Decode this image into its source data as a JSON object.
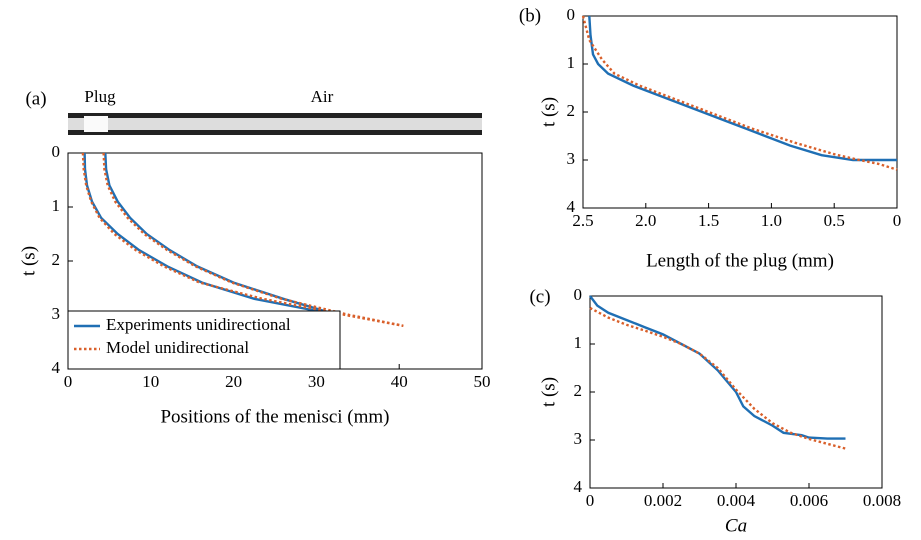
{
  "chart_data": [
    {
      "type": "line",
      "panel_label": "(a)",
      "image_labels": [
        "Plug",
        "Air"
      ],
      "xlabel": "Positions of the menisci (mm)",
      "ylabel": "t (s)",
      "xlim": [
        0,
        50
      ],
      "ylim": [
        0,
        4
      ],
      "xticks": [
        0,
        10,
        20,
        30,
        40,
        50
      ],
      "yticks": [
        0,
        1,
        2,
        3,
        4
      ],
      "y_inverted": true,
      "x_reversed": false,
      "legend": "lower left",
      "series": [
        {
          "name": "Experiments unidirectional",
          "color": "#1f6fb4",
          "style": "solid",
          "lines": [
            {
              "x": [
                2.0,
                2.05,
                2.3,
                2.9,
                4.0,
                6.0,
                8.6,
                12.0,
                16.2,
                22.5,
                32.6
              ],
              "values": [
                0,
                0.3,
                0.6,
                0.9,
                1.2,
                1.5,
                1.8,
                2.1,
                2.4,
                2.7,
                3.0
              ]
            },
            {
              "x": [
                4.5,
                4.6,
                5.0,
                6.0,
                7.5,
                9.5,
                12.3,
                15.6,
                20.0,
                26.0,
                32.6
              ],
              "values": [
                0,
                0.3,
                0.6,
                0.9,
                1.2,
                1.5,
                1.8,
                2.1,
                2.4,
                2.7,
                3.0
              ]
            }
          ]
        },
        {
          "name": "Model unidirectional",
          "color": "#d9602b",
          "style": "dotted",
          "lines": [
            {
              "x": [
                1.8,
                1.9,
                2.2,
                2.8,
                3.8,
                5.6,
                8.2,
                11.6,
                15.9,
                23.5,
                33.5,
                40.5
              ],
              "values": [
                0,
                0.3,
                0.6,
                0.9,
                1.2,
                1.5,
                1.8,
                2.1,
                2.4,
                2.7,
                3.0,
                3.2
              ]
            },
            {
              "x": [
                4.3,
                4.4,
                4.8,
                5.7,
                7.2,
                9.2,
                12.0,
                15.4,
                19.8,
                25.8,
                34.0,
                40.5
              ],
              "values": [
                0,
                0.3,
                0.6,
                0.9,
                1.2,
                1.5,
                1.8,
                2.1,
                2.4,
                2.7,
                3.0,
                3.2
              ]
            }
          ]
        }
      ]
    },
    {
      "type": "line",
      "panel_label": "(b)",
      "xlabel": "Length of the plug (mm)",
      "ylabel": "t (s)",
      "xlim": [
        0,
        2.5
      ],
      "ylim": [
        0,
        4
      ],
      "xticks": [
        2.5,
        {
          "value": 2,
          "label": "2.0"
        },
        1.5,
        {
          "value": 1,
          "label": "1.0"
        },
        0.5,
        0
      ],
      "yticks": [
        0,
        1,
        2,
        3,
        4
      ],
      "y_inverted": true,
      "x_reversed": true,
      "series": [
        {
          "color": "#1f6fb4",
          "style": "solid",
          "lines": [
            {
              "x": [
                2.45,
                2.44,
                2.42,
                2.38,
                2.3,
                2.1,
                1.85,
                1.55,
                1.2,
                0.85,
                0.6,
                0.35,
                0
              ],
              "values": [
                0,
                0.4,
                0.8,
                1.0,
                1.2,
                1.45,
                1.7,
                2.0,
                2.35,
                2.7,
                2.9,
                3.0,
                3.0
              ]
            }
          ]
        },
        {
          "color": "#d9602b",
          "style": "dotted",
          "lines": [
            {
              "x": [
                2.5,
                2.45,
                2.35,
                2.25,
                2.05,
                1.8,
                1.5,
                1.15,
                0.8,
                0.5,
                0.3,
                0.15,
                0
              ],
              "values": [
                0,
                0.5,
                0.9,
                1.2,
                1.45,
                1.7,
                2.0,
                2.35,
                2.65,
                2.88,
                3.0,
                3.08,
                3.2
              ]
            }
          ]
        }
      ]
    },
    {
      "type": "line",
      "panel_label": "(c)",
      "xlabel": "Ca",
      "ylabel": "t (s)",
      "xlim": [
        0,
        0.008
      ],
      "ylim": [
        0,
        4
      ],
      "xticks": [
        0,
        0.002,
        0.004,
        0.006,
        0.008
      ],
      "yticks": [
        0,
        1,
        2,
        3,
        4
      ],
      "y_inverted": true,
      "x_reversed": false,
      "series": [
        {
          "color": "#1f6fb4",
          "style": "solid",
          "lines": [
            {
              "x": [
                0,
                0.0002,
                0.0005,
                0.001,
                0.0015,
                0.002,
                0.0025,
                0.003,
                0.0035,
                0.004,
                0.0042,
                0.0045,
                0.005,
                0.0053,
                0.0058,
                0.006,
                0.0065,
                0.007
              ],
              "values": [
                0,
                0.2,
                0.35,
                0.5,
                0.65,
                0.8,
                1.0,
                1.2,
                1.55,
                2.0,
                2.3,
                2.5,
                2.7,
                2.85,
                2.9,
                2.95,
                2.97,
                2.97
              ]
            }
          ]
        },
        {
          "color": "#d9602b",
          "style": "dotted",
          "lines": [
            {
              "x": [
                0,
                0.0005,
                0.001,
                0.0015,
                0.002,
                0.0025,
                0.003,
                0.0035,
                0.004,
                0.0045,
                0.005,
                0.0055,
                0.006,
                0.0065,
                0.007
              ],
              "values": [
                0.25,
                0.45,
                0.6,
                0.72,
                0.85,
                1.0,
                1.2,
                1.5,
                1.95,
                2.35,
                2.65,
                2.85,
                2.98,
                3.08,
                3.18
              ]
            }
          ]
        }
      ]
    }
  ]
}
